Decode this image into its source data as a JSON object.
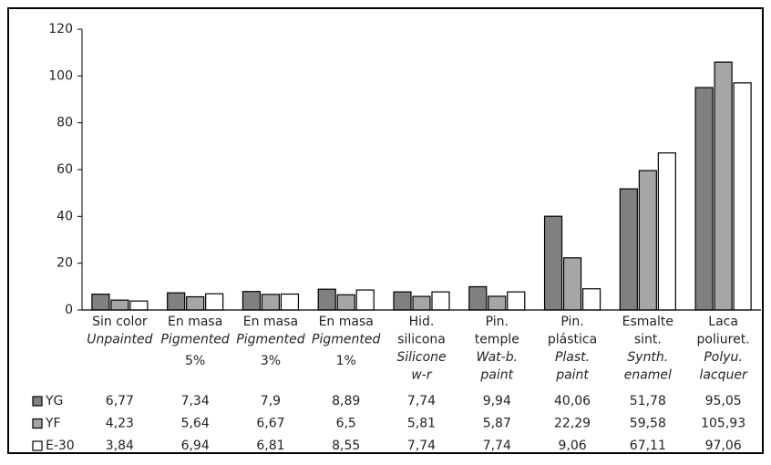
{
  "chart_data": {
    "type": "bar",
    "categories": [
      [
        "Sin color"
      ],
      [
        "En masa"
      ],
      [
        "En masa"
      ],
      [
        "En masa"
      ],
      [
        "Hid.",
        "silicona"
      ],
      [
        "Pin.",
        "temple"
      ],
      [
        "Pin.",
        "plástica"
      ],
      [
        "Esmalte",
        "sint."
      ],
      [
        "Laca",
        "poliuret."
      ]
    ],
    "categories_en": [
      [
        "Unpainted"
      ],
      [
        "Pigmented"
      ],
      [
        "Pigmented"
      ],
      [
        "Pigmented"
      ],
      [
        "Silicone",
        "w-r"
      ],
      [
        "Wat-b.",
        "paint"
      ],
      [
        "Plast.",
        "paint"
      ],
      [
        "Synth.",
        "enamel"
      ],
      [
        "Polyu.",
        "lacquer"
      ]
    ],
    "categories_note": [
      null,
      "5%",
      "3%",
      "1%",
      null,
      null,
      null,
      null,
      null
    ],
    "series": [
      {
        "name": "YG",
        "color": "#808080",
        "values": [
          6.77,
          7.34,
          7.9,
          8.89,
          7.74,
          9.94,
          40.06,
          51.78,
          95.05
        ],
        "value_labels": [
          "6,77",
          "7,34",
          "7,9",
          "8,89",
          "7,74",
          "9,94",
          "40,06",
          "51,78",
          "95,05"
        ]
      },
      {
        "name": "YF",
        "color": "#a6a6a6",
        "values": [
          4.23,
          5.64,
          6.67,
          6.5,
          5.81,
          5.87,
          22.29,
          59.58,
          105.93
        ],
        "value_labels": [
          "4,23",
          "5,64",
          "6,67",
          "6,5",
          "5,81",
          "5,87",
          "22,29",
          "59,58",
          "105,93"
        ]
      },
      {
        "name": "E-30",
        "color": "#ffffff",
        "values": [
          3.84,
          6.94,
          6.81,
          8.55,
          7.74,
          7.74,
          9.06,
          67.11,
          97.06
        ],
        "value_labels": [
          "3,84",
          "6,94",
          "6,81",
          "8,55",
          "7,74",
          "7,74",
          "9,06",
          "67,11",
          "97,06"
        ]
      }
    ],
    "ylim": [
      0,
      120
    ],
    "yticks": [
      0,
      20,
      40,
      60,
      80,
      100,
      120
    ]
  }
}
